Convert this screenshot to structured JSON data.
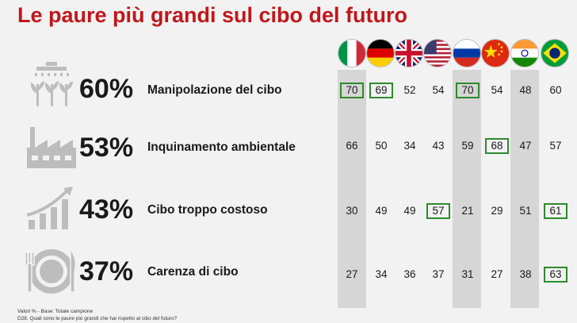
{
  "title": "Le paure più grandi sul cibo del futuro",
  "footnote": {
    "line1": "Valori % - Base: Totale campione",
    "line2": "D28. Quali sono le paure più grandi che hai rispetto al cibo del futuro?"
  },
  "colors": {
    "title": "#c0171b",
    "highlight_border": "#2d8a2d",
    "column_band": "#d6d6d6"
  },
  "chart_data": {
    "type": "table",
    "title": "Le paure più grandi sul cibo del futuro",
    "countries": [
      "Italia",
      "Germania",
      "Regno Unito",
      "Stati Uniti",
      "Russia",
      "Cina",
      "India",
      "Brasile"
    ],
    "country_flag_icons": [
      "italy-flag-icon",
      "germany-flag-icon",
      "uk-flag-icon",
      "usa-flag-icon",
      "russia-flag-icon",
      "china-flag-icon",
      "india-flag-icon",
      "brazil-flag-icon"
    ],
    "shaded_columns": [
      0,
      4,
      6
    ],
    "rows": [
      {
        "label": "Manipolazione del cibo",
        "total": "60%",
        "icon": "plant-sprinkler-icon",
        "values": [
          70,
          69,
          52,
          54,
          70,
          54,
          48,
          60
        ],
        "highlighted": [
          true,
          true,
          false,
          false,
          true,
          false,
          false,
          false
        ]
      },
      {
        "label": "Inquinamento ambientale",
        "total": "53%",
        "icon": "factory-icon",
        "values": [
          66,
          50,
          34,
          43,
          59,
          68,
          47,
          57
        ],
        "highlighted": [
          false,
          false,
          false,
          false,
          false,
          true,
          false,
          false
        ]
      },
      {
        "label": "Cibo troppo costoso",
        "total": "43%",
        "icon": "rising-bars-icon",
        "values": [
          30,
          49,
          49,
          57,
          21,
          29,
          51,
          61
        ],
        "highlighted": [
          false,
          false,
          false,
          true,
          false,
          false,
          false,
          true
        ]
      },
      {
        "label": "Carenza di cibo",
        "total": "37%",
        "icon": "cutlery-icon",
        "values": [
          27,
          34,
          36,
          37,
          31,
          27,
          38,
          63
        ],
        "highlighted": [
          false,
          false,
          false,
          false,
          false,
          false,
          false,
          true
        ]
      }
    ]
  }
}
